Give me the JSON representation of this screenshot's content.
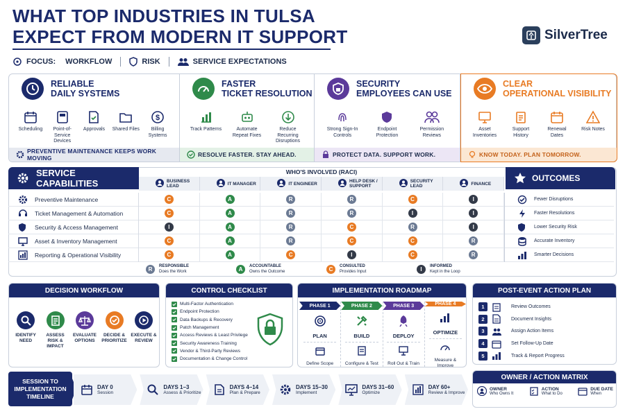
{
  "header": {
    "title_line1": "WHAT TOP INDUSTRIES IN TULSA",
    "title_line2": "EXPECT FROM MODERN IT SUPPORT",
    "brand": "SilverTree"
  },
  "focus": {
    "label": "FOCUS:",
    "items": [
      "WORKFLOW",
      "RISK",
      "SERVICE EXPECTATIONS"
    ]
  },
  "pillars": [
    {
      "title1": "RELIABLE",
      "title2": "DAILY SYSTEMS",
      "color": "#1b2a6b",
      "icon": "clock-icon",
      "items": [
        "Scheduling",
        "Point-of-Service Devices",
        "Approvals",
        "Shared Files",
        "Billing Systems"
      ],
      "footer": "PREVENTIVE MAINTENANCE KEEPS WORK MOVING"
    },
    {
      "title1": "FASTER",
      "title2": "TICKET RESOLUTION",
      "color": "#2f8a4a",
      "icon": "speedometer-icon",
      "items": [
        "Track Patterns",
        "Automate Repeat Fixes",
        "Reduce Recurring Disruptions"
      ],
      "footer": "RESOLVE FASTER. STAY AHEAD."
    },
    {
      "title1": "SECURITY",
      "title2": "EMPLOYEES CAN USE",
      "color": "#5b3a9a",
      "icon": "shield-lock-icon",
      "items": [
        "Strong Sign-In Controls",
        "Endpoint Protection",
        "Permission Reviews"
      ],
      "footer": "PROTECT DATA. SUPPORT WORK."
    },
    {
      "title1": "CLEAR",
      "title2": "OPERATIONAL VISIBILITY",
      "color": "#e87b24",
      "icon": "eye-icon",
      "items": [
        "Asset Inventories",
        "Support History",
        "Renewal Dates",
        "Risk Notes"
      ],
      "footer": "KNOW TODAY. PLAN TOMORROW."
    }
  ],
  "raci": {
    "section_title": "SERVICE CAPABILITIES",
    "group_title": "WHO'S INVOLVED (RACI)",
    "columns": [
      "BUSINESS LEAD",
      "IT MANAGER",
      "IT ENGINEER",
      "HELP DESK / SUPPORT",
      "SECURITY LEAD",
      "FINANCE"
    ],
    "rows": [
      {
        "label": "Preventive Maintenance",
        "icon": "gear-icon",
        "cells": [
          "C",
          "A",
          "R",
          "R",
          "C",
          "I"
        ]
      },
      {
        "label": "Ticket Management & Automation",
        "icon": "headset-icon",
        "cells": [
          "C",
          "A",
          "R",
          "R",
          "I",
          "I"
        ]
      },
      {
        "label": "Security & Access Management",
        "icon": "shield-icon",
        "cells": [
          "I",
          "A",
          "R",
          "C",
          "R",
          "I"
        ]
      },
      {
        "label": "Asset & Inventory Management",
        "icon": "monitor-icon",
        "cells": [
          "C",
          "A",
          "R",
          "C",
          "C",
          "R"
        ]
      },
      {
        "label": "Reporting & Operational Visibility",
        "icon": "chart-icon",
        "cells": [
          "C",
          "A",
          "C",
          "I",
          "C",
          "R"
        ]
      }
    ],
    "legend": [
      {
        "letter": "R",
        "title": "RESPONSIBLE",
        "desc": "Does the Work"
      },
      {
        "letter": "A",
        "title": "ACCOUNTABLE",
        "desc": "Owns the Outcome"
      },
      {
        "letter": "C",
        "title": "CONSULTED",
        "desc": "Provides Input"
      },
      {
        "letter": "I",
        "title": "INFORMED",
        "desc": "Kept in the Loop"
      }
    ],
    "outcomes_title": "OUTCOMES",
    "outcomes": [
      "Fewer Disruptions",
      "Faster Resolutions",
      "Lower Security Risk",
      "Accurate Inventory",
      "Smarter Decisions"
    ]
  },
  "decision": {
    "title": "DECISION WORKFLOW",
    "steps": [
      "IDENTIFY NEED",
      "ASSESS RISK & IMPACT",
      "EVALUATE OPTIONS",
      "DECIDE & PRIORITIZE",
      "EXECUTE & REVIEW"
    ]
  },
  "checklist": {
    "title": "CONTROL CHECKLIST",
    "items": [
      "Multi-Factor Authentication",
      "Endpoint Protection",
      "Data Backups & Recovery",
      "Patch Management",
      "Access Reviews & Least Privilege",
      "Security Awareness Training",
      "Vendor & Third-Party Reviews",
      "Documentation & Change Control"
    ]
  },
  "roadmap": {
    "title": "IMPLEMENTATION ROADMAP",
    "phases": [
      {
        "label": "PHASE 1",
        "name": "PLAN",
        "sub": "Define Scope",
        "color": "#1b2a6b"
      },
      {
        "label": "PHASE 2",
        "name": "BUILD",
        "sub": "Configure & Test",
        "color": "#2f8a4a"
      },
      {
        "label": "PHASE 3",
        "name": "DEPLOY",
        "sub": "Roll Out & Train",
        "color": "#5b3a9a"
      },
      {
        "label": "PHASE 4",
        "name": "OPTIMIZE",
        "sub": "Measure & Improve",
        "color": "#e87b24"
      }
    ]
  },
  "post": {
    "title": "POST-EVENT ACTION PLAN",
    "items": [
      "Review Outcomes",
      "Document Insights",
      "Assign Action Items",
      "Set Follow-Up Date",
      "Track & Report Progress"
    ]
  },
  "timeline": {
    "title": "SESSION TO IMPLEMENTATION TIMELINE",
    "steps": [
      {
        "day": "DAY 0",
        "sub": "Session"
      },
      {
        "day": "DAYS 1–3",
        "sub": "Assess & Prioritize"
      },
      {
        "day": "DAYS 4–14",
        "sub": "Plan & Prepare"
      },
      {
        "day": "DAYS 15–30",
        "sub": "Implement"
      },
      {
        "day": "DAYS 31–60",
        "sub": "Optimize"
      },
      {
        "day": "DAY 60+",
        "sub": "Review & Improve"
      }
    ]
  },
  "owner": {
    "title": "OWNER / ACTION MATRIX",
    "cols": [
      {
        "h": "OWNER",
        "s": "Who Owns It"
      },
      {
        "h": "ACTION",
        "s": "What to Do"
      },
      {
        "h": "DUE DATE",
        "s": "When"
      }
    ]
  }
}
